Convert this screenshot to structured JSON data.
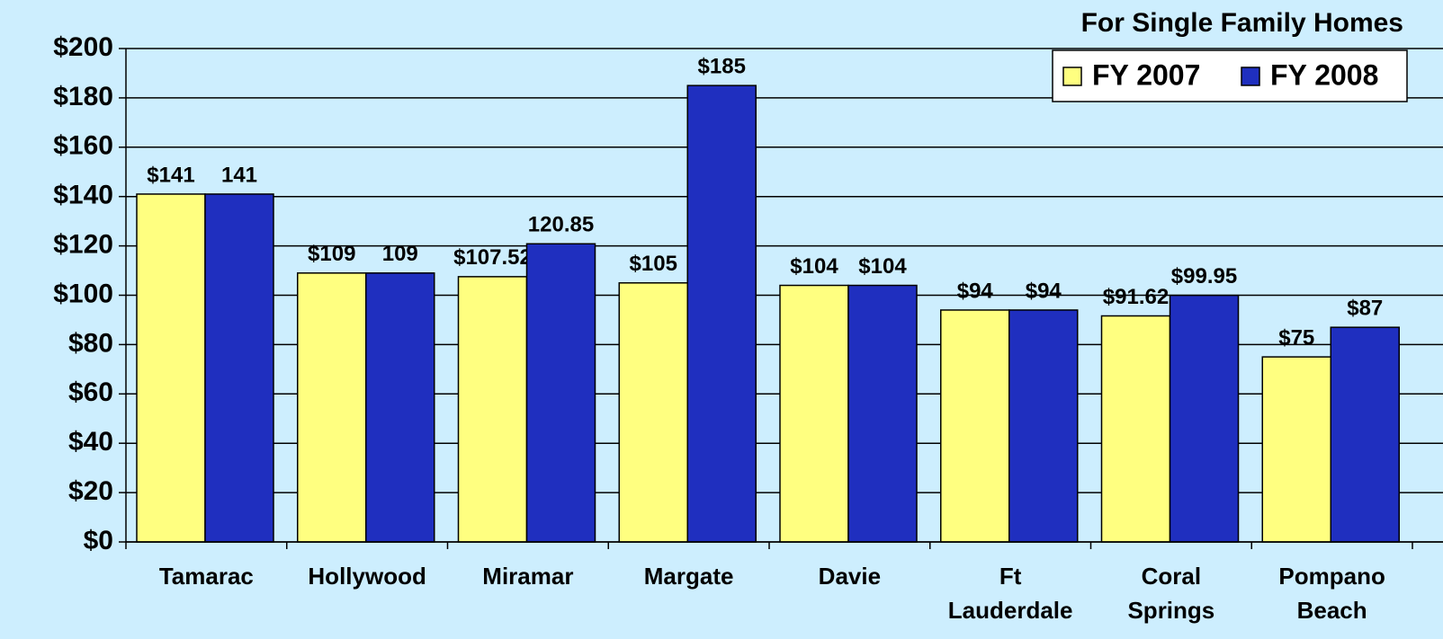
{
  "chart_data": {
    "type": "bar",
    "title": "For Single Family Homes",
    "categories": [
      "Tamarac",
      "Hollywood",
      "Miramar",
      "Margate",
      "Davie",
      "Ft Lauderdale",
      "Coral Springs",
      "Pompano Beach"
    ],
    "series": [
      {
        "name": "FY 2007",
        "color": "#ffff80",
        "values": [
          141,
          109,
          107.52,
          105,
          104,
          94,
          91.62,
          75
        ],
        "value_labels": [
          "$141",
          "$109",
          "$107.52",
          "$105",
          "$104",
          "$94",
          "$91.62",
          "$75"
        ]
      },
      {
        "name": "FY 2008",
        "color": "#1f2fbf",
        "values": [
          141,
          109,
          120.85,
          185,
          104,
          94,
          99.95,
          87
        ],
        "value_labels": [
          "141",
          "109",
          "120.85",
          "$185",
          "$104",
          "$94",
          "$99.95",
          "$87"
        ]
      }
    ],
    "ylim": [
      0,
      200
    ],
    "yticks": [
      {
        "value": 0,
        "label": "$0"
      },
      {
        "value": 20,
        "label": "$20"
      },
      {
        "value": 40,
        "label": "$40"
      },
      {
        "value": 60,
        "label": "$60"
      },
      {
        "value": 80,
        "label": "$80"
      },
      {
        "value": 100,
        "label": "$100"
      },
      {
        "value": 120,
        "label": "$120"
      },
      {
        "value": 140,
        "label": "$140"
      },
      {
        "value": 160,
        "label": "$160"
      },
      {
        "value": 180,
        "label": "$180"
      },
      {
        "value": 200,
        "label": "$200"
      }
    ],
    "grid": true,
    "legend": "top-right"
  }
}
